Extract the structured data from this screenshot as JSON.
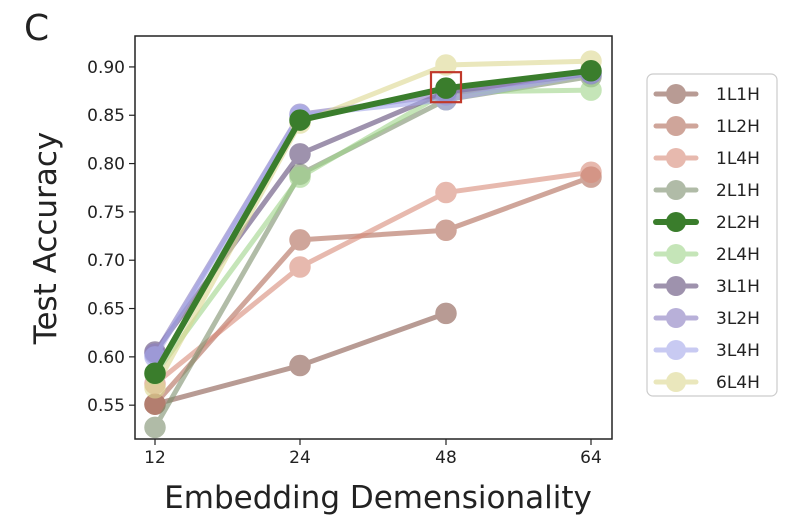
{
  "panel_label": "C",
  "colors": {
    "highlight_box": "#c0392b",
    "legend_border": "#cccccc"
  },
  "chart_data": {
    "type": "line",
    "x": [
      12,
      24,
      48,
      64
    ],
    "x_ticks": [
      "12",
      "24",
      "48",
      "64"
    ],
    "y_ticks": [
      "0.55",
      "0.60",
      "0.65",
      "0.70",
      "0.75",
      "0.80",
      "0.85",
      "0.90"
    ],
    "ylim": [
      0.515,
      0.932
    ],
    "xlabel": "Embedding Demensionality",
    "ylabel": "Test Accuracy",
    "title": "",
    "grid": false,
    "legend_position": "right",
    "highlight": {
      "series": "2L2H",
      "x": 48,
      "y": 0.878
    },
    "series": [
      {
        "name": "1L1H",
        "color": "#8a5a4e",
        "opacity": 0.6,
        "values": [
          0.551,
          0.591,
          0.645,
          null
        ]
      },
      {
        "name": "1L2H",
        "color": "#b06b58",
        "opacity": 0.6,
        "values": [
          0.551,
          0.721,
          0.731,
          0.786
        ]
      },
      {
        "name": "1L4H",
        "color": "#d88b7a",
        "opacity": 0.6,
        "values": [
          0.572,
          0.693,
          0.77,
          0.791
        ]
      },
      {
        "name": "2L1H",
        "color": "#7d8f6d",
        "opacity": 0.6,
        "values": [
          0.527,
          0.789,
          0.866,
          0.89
        ]
      },
      {
        "name": "2L2H",
        "color": "#3a7d2c",
        "opacity": 1.0,
        "values": [
          0.583,
          0.845,
          0.878,
          0.896
        ]
      },
      {
        "name": "2L4H",
        "color": "#9fd48a",
        "opacity": 0.6,
        "values": [
          0.582,
          0.786,
          0.874,
          0.876
        ]
      },
      {
        "name": "3L1H",
        "color": "#5e4a78",
        "opacity": 0.6,
        "values": [
          0.605,
          0.81,
          0.874,
          0.893
        ]
      },
      {
        "name": "3L2H",
        "color": "#8a7cc0",
        "opacity": 0.6,
        "values": [
          0.603,
          0.851,
          0.871,
          0.895
        ]
      },
      {
        "name": "3L4H",
        "color": "#a5a8ea",
        "opacity": 0.6,
        "values": [
          0.6,
          0.85,
          0.866,
          0.893
        ]
      },
      {
        "name": "6L4H",
        "color": "#ddd891",
        "opacity": 0.6,
        "values": [
          0.568,
          0.842,
          0.902,
          0.906
        ]
      }
    ]
  }
}
